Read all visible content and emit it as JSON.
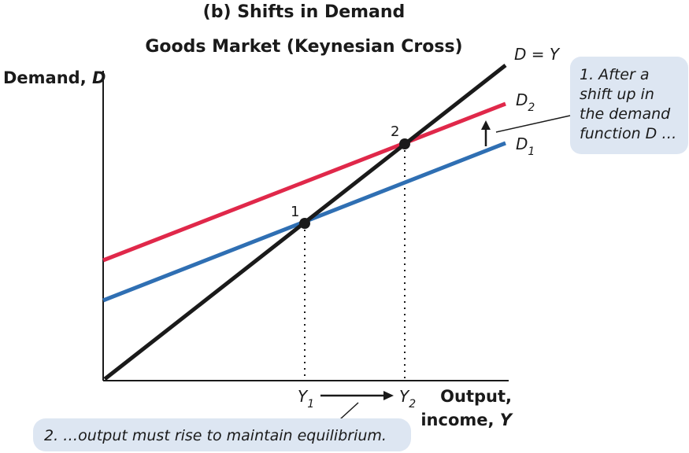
{
  "title": "(b) Shifts in Demand",
  "subtitle": "Goods Market (Keynesian Cross)",
  "y_axis": {
    "label": "Demand, ",
    "var": "D"
  },
  "x_axis": {
    "label_line1": "Output,",
    "label_line2": "income, ",
    "var": "Y"
  },
  "lines": {
    "identity": {
      "label": "D = Y",
      "color": "#1a1a1a"
    },
    "d2": {
      "label": "D",
      "sub": "2",
      "color": "#e0284a"
    },
    "d1": {
      "label": "D",
      "sub": "1",
      "color": "#2f6fb3"
    }
  },
  "points": {
    "p1": "1",
    "p2": "2"
  },
  "x_ticks": {
    "y1": "Y",
    "y1_sub": "1",
    "y2": "Y",
    "y2_sub": "2"
  },
  "note_top": [
    "1. After a",
    "shift up in",
    "the demand",
    "function D …"
  ],
  "note_bottom": "2. …output must rise to maintain equilibrium.",
  "colors": {
    "note_bg": "#dde6f2",
    "axis": "#1a1a1a"
  }
}
